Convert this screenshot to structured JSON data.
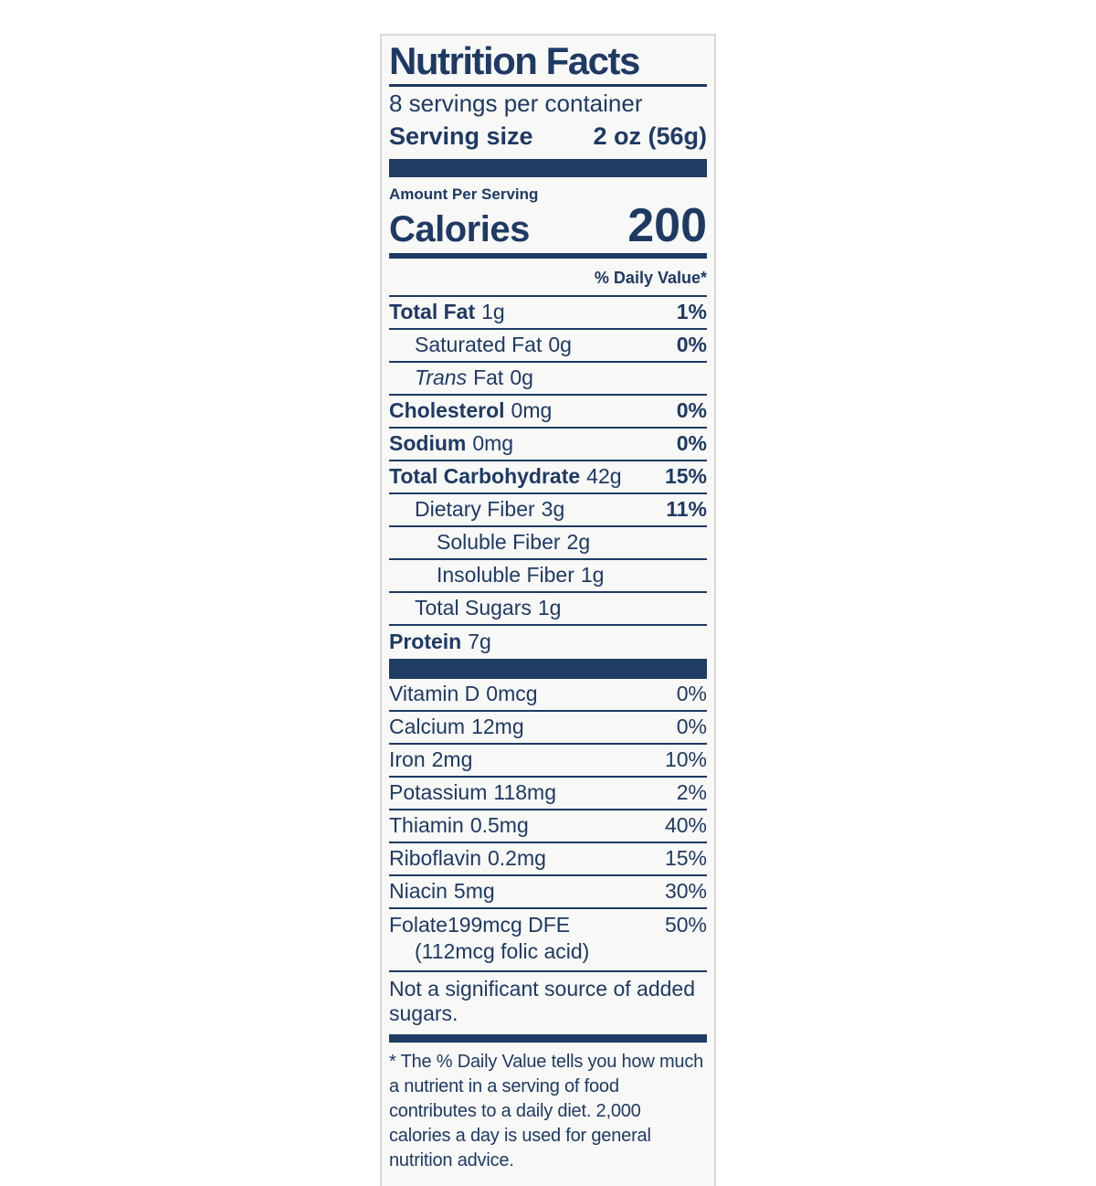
{
  "label": {
    "title": "Nutrition Facts",
    "servings_per_container": "8 servings per container",
    "serving_size": {
      "label": "Serving size",
      "value": "2 oz (56g)"
    },
    "amount_per_serving": "Amount Per Serving",
    "calories": {
      "label": "Calories",
      "value": "200"
    },
    "daily_value_header": "% Daily Value*",
    "nutrients": [
      {
        "name": "Total Fat",
        "amount": "1g",
        "dv": "1%"
      },
      {
        "name": "Saturated Fat",
        "amount": "0g",
        "dv": "0%"
      },
      {
        "name_italic": "Trans",
        "name": "Fat",
        "amount": "0g",
        "dv": ""
      },
      {
        "name": "Cholesterol",
        "amount": "0mg",
        "dv": "0%"
      },
      {
        "name": "Sodium",
        "amount": "0mg",
        "dv": "0%"
      },
      {
        "name": "Total Carbohydrate",
        "amount": "42g",
        "dv": "15%"
      },
      {
        "name": "Dietary Fiber",
        "amount": "3g",
        "dv": "11%"
      },
      {
        "name": "Soluble Fiber",
        "amount": "2g",
        "dv": ""
      },
      {
        "name": "Insoluble Fiber",
        "amount": "1g",
        "dv": ""
      },
      {
        "name": "Total Sugars",
        "amount": "1g",
        "dv": ""
      },
      {
        "name": "Protein",
        "amount": "7g",
        "dv": ""
      }
    ],
    "micronutrients": [
      {
        "name": "Vitamin D",
        "amount": "0mcg",
        "dv": "0%"
      },
      {
        "name": "Calcium",
        "amount": "12mg",
        "dv": "0%"
      },
      {
        "name": "Iron",
        "amount": "2mg",
        "dv": "10%"
      },
      {
        "name": "Potassium",
        "amount": "118mg",
        "dv": "2%"
      },
      {
        "name": "Thiamin",
        "amount": "0.5mg",
        "dv": "40%"
      },
      {
        "name": "Riboflavin",
        "amount": "0.2mg",
        "dv": "15%"
      },
      {
        "name": "Niacin",
        "amount": "5mg",
        "dv": "30%"
      },
      {
        "name": "Folate",
        "amount": "199mcg DFE",
        "dv": "50%",
        "sub": "(112mcg folic acid)"
      }
    ],
    "note": "Not a significant source of added sugars.",
    "footnote": "* The % Daily Value tells you how much a nutrient in a serving of food contributes to a daily diet. 2,000 calories a day is used for general nutrition advice.",
    "colors": {
      "navy": "#1e3a64",
      "panel_bg": "#f8f8f7",
      "border": "#d9d9dc"
    }
  }
}
